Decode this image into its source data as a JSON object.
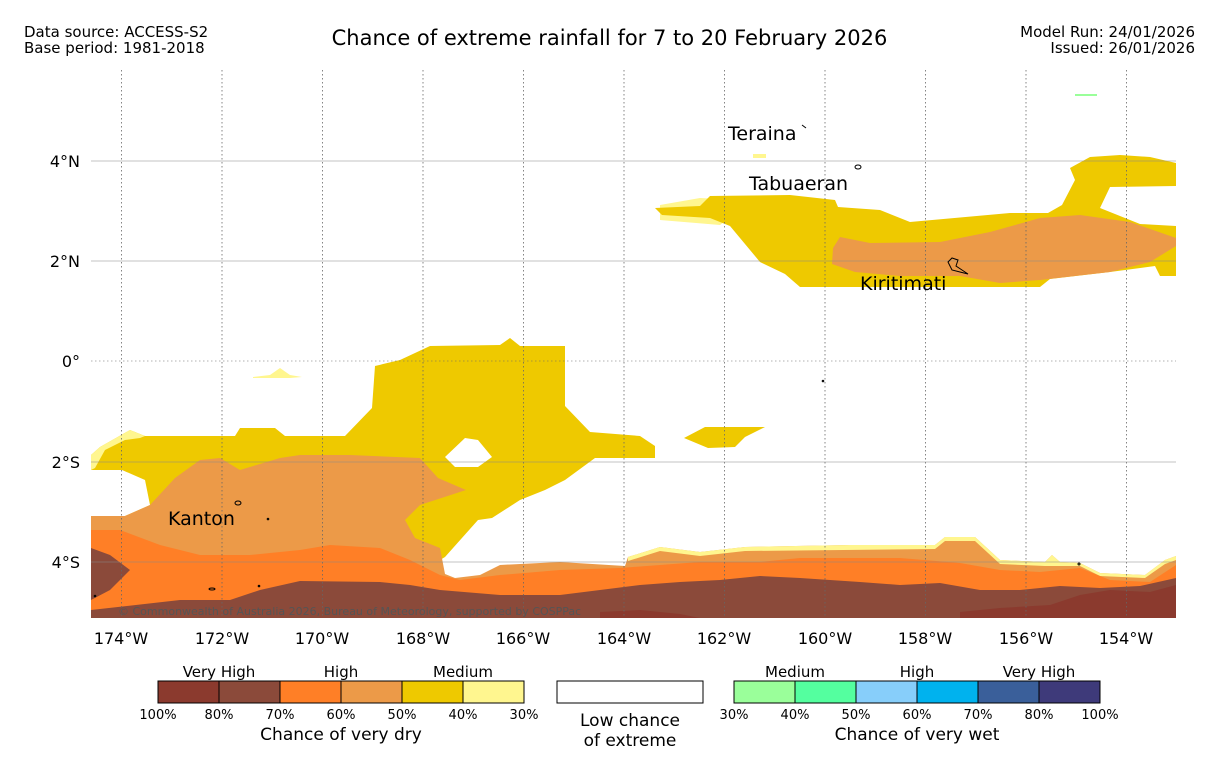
{
  "header": {
    "data_source": "Data source: ACCESS-S2",
    "base_period": "Base period: 1981-2018",
    "title": "Chance of extreme rainfall for 7 to 20 February 2026",
    "model_run": "Model Run: 24/01/2026",
    "issued": "Issued: 26/01/2026"
  },
  "map": {
    "lon_labels": [
      "174°W",
      "172°W",
      "170°W",
      "168°W",
      "166°W",
      "164°W",
      "162°W",
      "160°W",
      "158°W",
      "156°W",
      "154°W"
    ],
    "lat_labels": [
      "4°N",
      "2°N",
      "0°",
      "2°S",
      "4°S"
    ],
    "places": [
      "Teraina",
      "Tabuaeran",
      "Kiritimati",
      "Kanton"
    ],
    "copyright": "© Commonwealth of Australia 2026, Bureau of Meteorology, supported by COSPPac",
    "colors": {
      "very_high_dry_1": "#8b3a2e",
      "very_high_dry_2": "#8b4a3a",
      "high_dry_1": "#ff7f26",
      "high_dry_2": "#ec9a48",
      "medium_dry_1": "#eec900",
      "medium_dry_2": "#fff68f"
    }
  },
  "legend": {
    "dry": {
      "groups": [
        "Very High",
        "High",
        "Medium"
      ],
      "ticks": [
        "100%",
        "80%",
        "70%",
        "60%",
        "50%",
        "40%",
        "30%"
      ],
      "label": "Chance of very dry",
      "colors": [
        "#8b3a2e",
        "#8b4a3a",
        "#ff7f26",
        "#ec9a48",
        "#eec900",
        "#fff68f"
      ]
    },
    "low": {
      "line1": "Low chance",
      "line2": "of extreme"
    },
    "wet": {
      "groups": [
        "Medium",
        "High",
        "Very High"
      ],
      "ticks": [
        "30%",
        "40%",
        "50%",
        "60%",
        "70%",
        "80%",
        "100%"
      ],
      "label": "Chance of very wet",
      "colors": [
        "#9aff9a",
        "#54ff9f",
        "#87cefa",
        "#00b2ee",
        "#3a5f9a",
        "#3e3a7a"
      ]
    }
  }
}
